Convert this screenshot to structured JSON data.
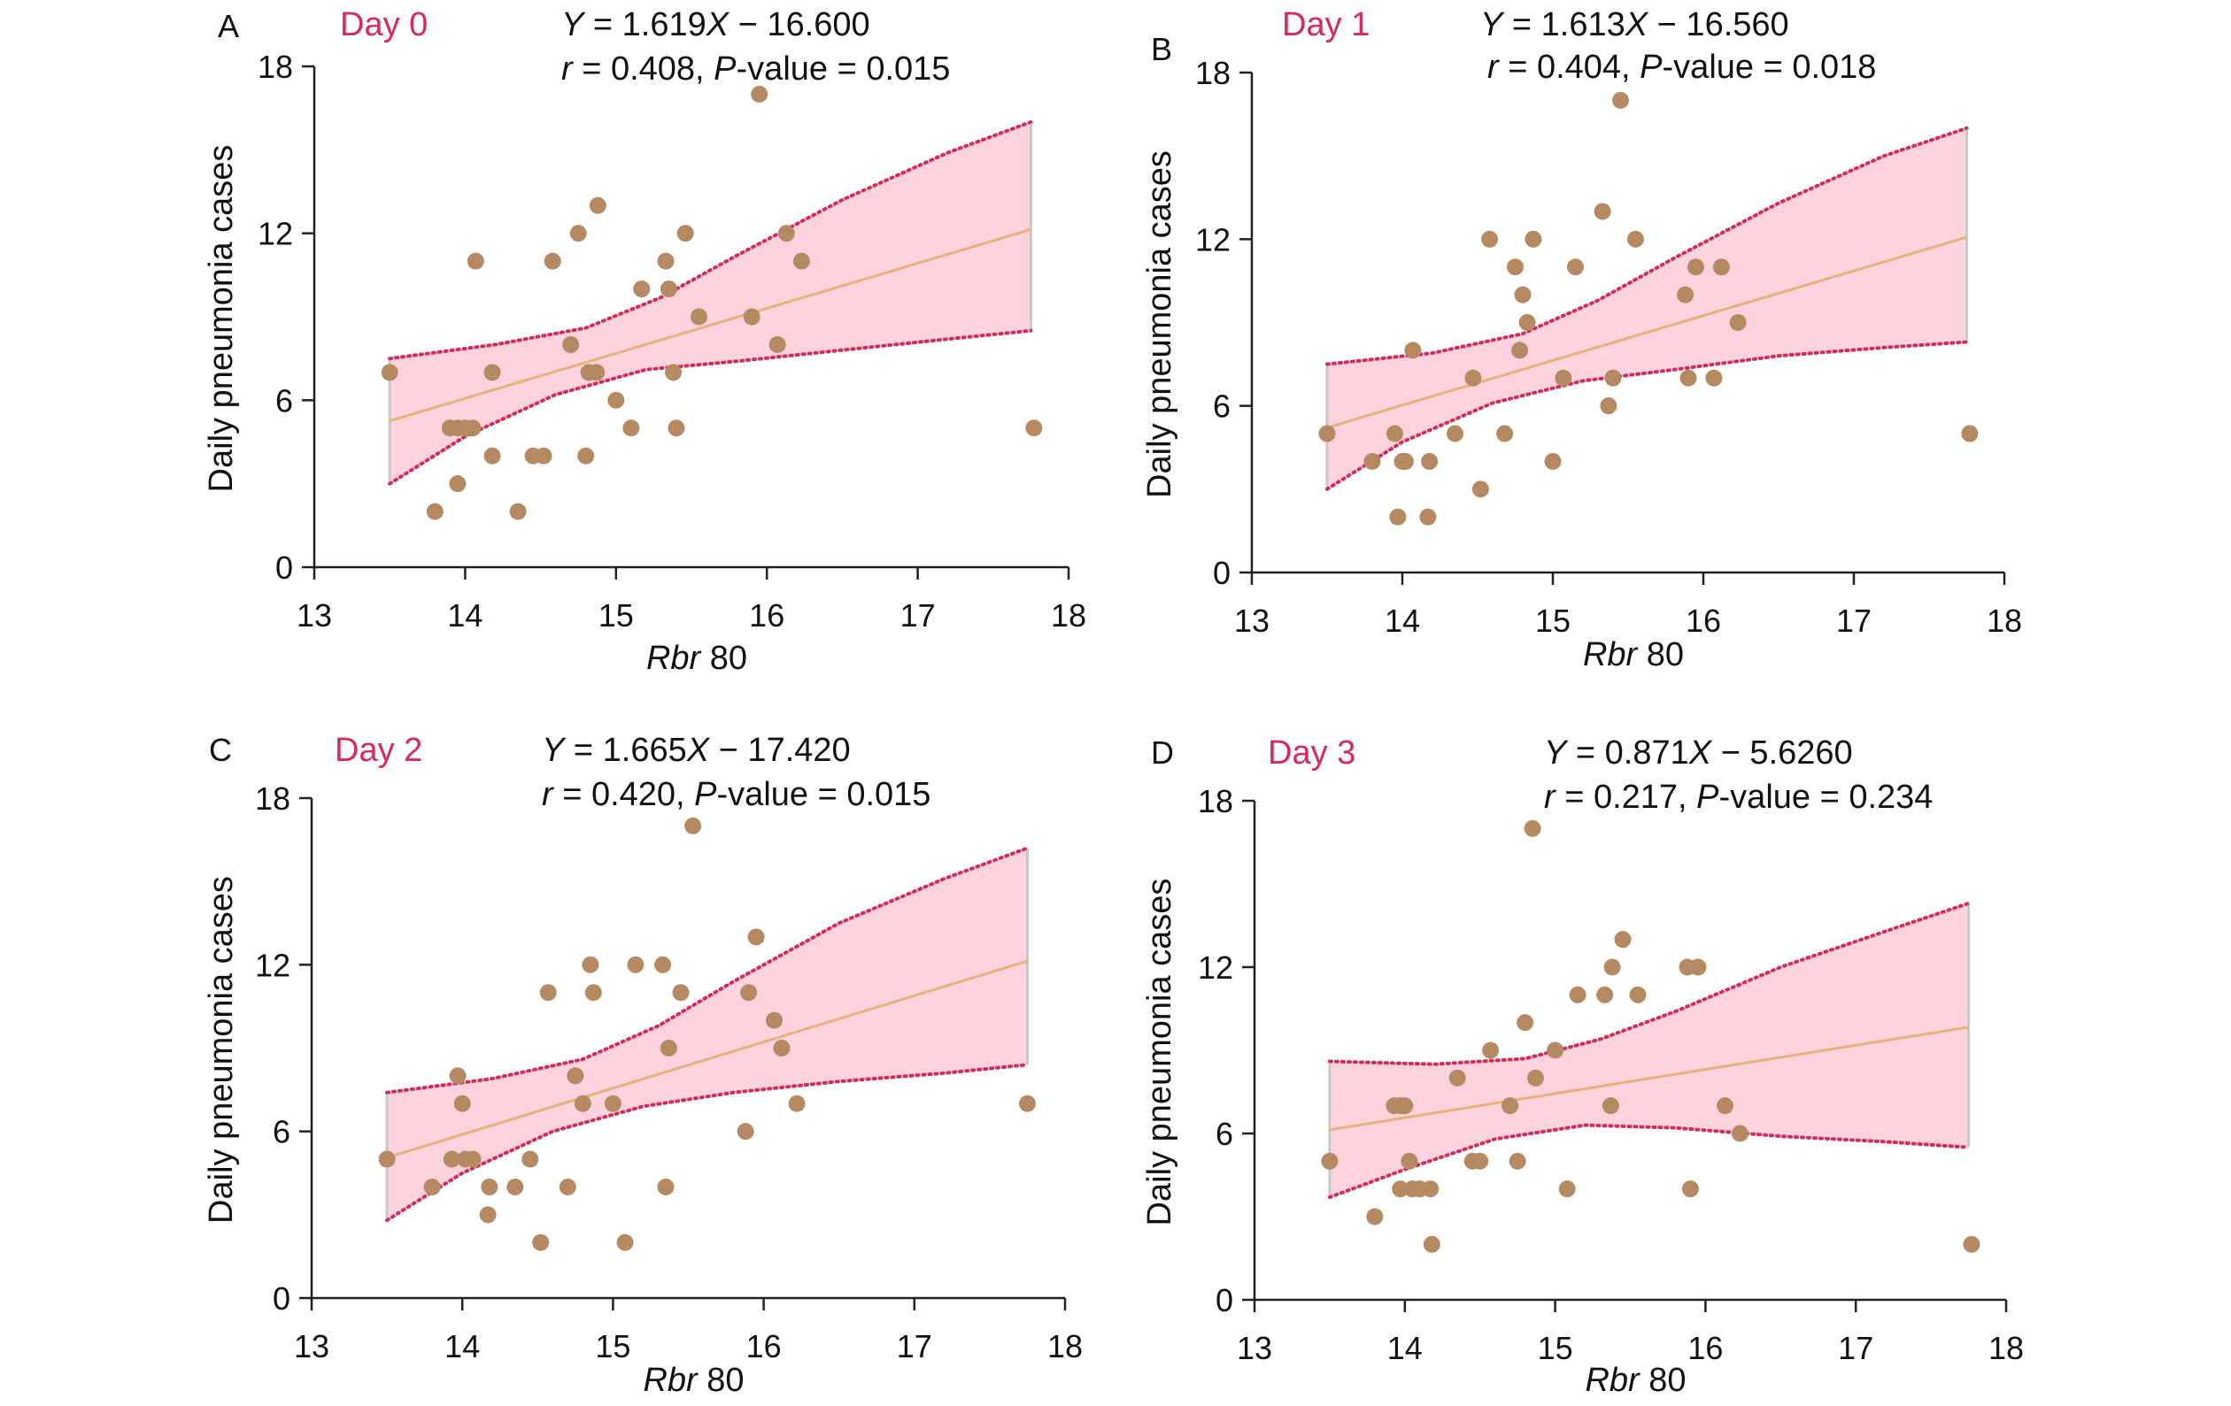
{
  "chart_data": [
    {
      "type": "scatter",
      "panel": "A",
      "day_label": "Day 0",
      "equation": {
        "y_sym": "Y",
        "eq_mid": " = 1.619",
        "x_sym": "X",
        "eq_end": " − 16.600"
      },
      "stats": {
        "r_sym": "r",
        "r_val": " = 0.408, ",
        "p_sym": "P",
        "p_val": "-value = 0.015"
      },
      "xlabel": {
        "italic": "Rbr",
        "rest": " 80"
      },
      "ylabel": "Daily pneumonia cases",
      "xlim": [
        13,
        18
      ],
      "ylim": [
        0,
        18
      ],
      "xticks": [
        13,
        14,
        15,
        16,
        17,
        18
      ],
      "yticks": [
        0,
        6,
        12,
        18
      ],
      "fit": {
        "slope": 1.619,
        "intercept": -16.6,
        "x_range": [
          13.5,
          17.75
        ]
      },
      "band": {
        "upper": [
          [
            13.5,
            7.5
          ],
          [
            14.2,
            8.0
          ],
          [
            14.8,
            8.6
          ],
          [
            15.3,
            9.7
          ],
          [
            15.8,
            11.2
          ],
          [
            16.5,
            13.2
          ],
          [
            17.2,
            14.9
          ],
          [
            17.75,
            16.0
          ]
        ],
        "lower": [
          [
            13.5,
            3.0
          ],
          [
            14.0,
            4.7
          ],
          [
            14.6,
            6.2
          ],
          [
            15.2,
            7.1
          ],
          [
            15.8,
            7.4
          ],
          [
            16.5,
            7.8
          ],
          [
            17.2,
            8.2
          ],
          [
            17.75,
            8.5
          ]
        ]
      },
      "points": [
        [
          13.5,
          7
        ],
        [
          13.8,
          2
        ],
        [
          13.9,
          5
        ],
        [
          13.95,
          5
        ],
        [
          13.95,
          3
        ],
        [
          14.0,
          5
        ],
        [
          14.05,
          5
        ],
        [
          14.07,
          11
        ],
        [
          14.18,
          4
        ],
        [
          14.18,
          7
        ],
        [
          14.35,
          2
        ],
        [
          14.45,
          4
        ],
        [
          14.52,
          4
        ],
        [
          14.58,
          11
        ],
        [
          14.7,
          8
        ],
        [
          14.75,
          12
        ],
        [
          14.8,
          4
        ],
        [
          14.82,
          7
        ],
        [
          14.87,
          7
        ],
        [
          14.88,
          13
        ],
        [
          15.0,
          6
        ],
        [
          15.1,
          5
        ],
        [
          15.17,
          10
        ],
        [
          15.33,
          11
        ],
        [
          15.35,
          10
        ],
        [
          15.38,
          7
        ],
        [
          15.4,
          5
        ],
        [
          15.46,
          12
        ],
        [
          15.55,
          9
        ],
        [
          15.9,
          9
        ],
        [
          15.95,
          17
        ],
        [
          16.07,
          8
        ],
        [
          16.13,
          12
        ],
        [
          16.23,
          11
        ],
        [
          17.77,
          5
        ]
      ],
      "colors": {
        "point": "#b58a63",
        "fit": "#e5b27a",
        "band": "#ffd3dd",
        "band_edge": "#d42a5c",
        "day_label": "#d42a5c"
      }
    },
    {
      "type": "scatter",
      "panel": "B",
      "day_label": "Day 1",
      "equation": {
        "y_sym": "Y",
        "eq_mid": " = 1.613",
        "x_sym": "X",
        "eq_end": " − 16.560"
      },
      "stats": {
        "r_sym": "r",
        "r_val": " = 0.404, ",
        "p_sym": "P",
        "p_val": "-value = 0.018"
      },
      "xlabel": {
        "italic": "Rbr",
        "rest": " 80"
      },
      "ylabel": "Daily pneumonia cases",
      "xlim": [
        13,
        18
      ],
      "ylim": [
        0,
        18
      ],
      "xticks": [
        13,
        14,
        15,
        16,
        17,
        18
      ],
      "yticks": [
        0,
        6,
        12,
        18
      ],
      "fit": {
        "slope": 1.613,
        "intercept": -16.56,
        "x_range": [
          13.5,
          17.75
        ]
      },
      "band": {
        "upper": [
          [
            13.5,
            7.5
          ],
          [
            14.2,
            7.9
          ],
          [
            14.8,
            8.6
          ],
          [
            15.3,
            9.8
          ],
          [
            15.8,
            11.3
          ],
          [
            16.5,
            13.3
          ],
          [
            17.2,
            15.0
          ],
          [
            17.75,
            16.0
          ]
        ],
        "lower": [
          [
            13.5,
            3.0
          ],
          [
            14.0,
            4.7
          ],
          [
            14.6,
            6.1
          ],
          [
            15.2,
            6.9
          ],
          [
            15.8,
            7.3
          ],
          [
            16.5,
            7.8
          ],
          [
            17.2,
            8.1
          ],
          [
            17.75,
            8.3
          ]
        ]
      },
      "points": [
        [
          13.5,
          5
        ],
        [
          13.8,
          4
        ],
        [
          13.95,
          5
        ],
        [
          13.97,
          2
        ],
        [
          14.0,
          4
        ],
        [
          14.02,
          4
        ],
        [
          14.07,
          8
        ],
        [
          14.17,
          2
        ],
        [
          14.18,
          4
        ],
        [
          14.35,
          5
        ],
        [
          14.47,
          7
        ],
        [
          14.52,
          3
        ],
        [
          14.58,
          12
        ],
        [
          14.68,
          5
        ],
        [
          14.75,
          11
        ],
        [
          14.78,
          8
        ],
        [
          14.8,
          10
        ],
        [
          14.83,
          9
        ],
        [
          14.87,
          12
        ],
        [
          15.0,
          4
        ],
        [
          15.07,
          7
        ],
        [
          15.15,
          11
        ],
        [
          15.33,
          13
        ],
        [
          15.37,
          6
        ],
        [
          15.4,
          7
        ],
        [
          15.45,
          17
        ],
        [
          15.55,
          12
        ],
        [
          15.88,
          10
        ],
        [
          15.9,
          7
        ],
        [
          15.95,
          11
        ],
        [
          16.07,
          7
        ],
        [
          16.12,
          11
        ],
        [
          16.23,
          9
        ],
        [
          17.77,
          5
        ]
      ],
      "colors": {
        "point": "#b58a63",
        "fit": "#e5b27a",
        "band": "#ffd3dd",
        "band_edge": "#d42a5c",
        "day_label": "#d42a5c"
      }
    },
    {
      "type": "scatter",
      "panel": "C",
      "day_label": "Day 2",
      "equation": {
        "y_sym": "Y",
        "eq_mid": " = 1.665",
        "x_sym": "X",
        "eq_end": " − 17.420"
      },
      "stats": {
        "r_sym": "r",
        "r_val": " = 0.420, ",
        "p_sym": "P",
        "p_val": "-value = 0.015"
      },
      "xlabel": {
        "italic": "Rbr",
        "rest": " 80"
      },
      "ylabel": "Daily pneumonia cases",
      "xlim": [
        13,
        18
      ],
      "ylim": [
        0,
        18
      ],
      "xticks": [
        13,
        14,
        15,
        16,
        17,
        18
      ],
      "yticks": [
        0,
        6,
        12,
        18
      ],
      "fit": {
        "slope": 1.665,
        "intercept": -17.42,
        "x_range": [
          13.5,
          17.75
        ]
      },
      "band": {
        "upper": [
          [
            13.5,
            7.4
          ],
          [
            14.2,
            7.9
          ],
          [
            14.8,
            8.6
          ],
          [
            15.3,
            9.8
          ],
          [
            15.8,
            11.4
          ],
          [
            16.5,
            13.5
          ],
          [
            17.2,
            15.1
          ],
          [
            17.75,
            16.2
          ]
        ],
        "lower": [
          [
            13.5,
            2.8
          ],
          [
            14.0,
            4.5
          ],
          [
            14.6,
            6.0
          ],
          [
            15.2,
            6.9
          ],
          [
            15.8,
            7.4
          ],
          [
            16.5,
            7.8
          ],
          [
            17.2,
            8.1
          ],
          [
            17.75,
            8.4
          ]
        ]
      },
      "points": [
        [
          13.5,
          5
        ],
        [
          13.8,
          4
        ],
        [
          13.93,
          5
        ],
        [
          13.97,
          8
        ],
        [
          14.0,
          7
        ],
        [
          14.02,
          5
        ],
        [
          14.07,
          5
        ],
        [
          14.17,
          3
        ],
        [
          14.18,
          4
        ],
        [
          14.35,
          4
        ],
        [
          14.45,
          5
        ],
        [
          14.52,
          2
        ],
        [
          14.57,
          11
        ],
        [
          14.7,
          4
        ],
        [
          14.75,
          8
        ],
        [
          14.8,
          7
        ],
        [
          14.85,
          12
        ],
        [
          14.87,
          11
        ],
        [
          15.0,
          7
        ],
        [
          15.08,
          2
        ],
        [
          15.15,
          12
        ],
        [
          15.33,
          12
        ],
        [
          15.35,
          4
        ],
        [
          15.37,
          9
        ],
        [
          15.45,
          11
        ],
        [
          15.53,
          17
        ],
        [
          15.88,
          6
        ],
        [
          15.9,
          11
        ],
        [
          15.95,
          13
        ],
        [
          16.07,
          10
        ],
        [
          16.12,
          9
        ],
        [
          16.22,
          7
        ],
        [
          17.75,
          7
        ]
      ],
      "colors": {
        "point": "#b58a63",
        "fit": "#e5b27a",
        "band": "#ffd3dd",
        "band_edge": "#d42a5c",
        "day_label": "#d42a5c"
      }
    },
    {
      "type": "scatter",
      "panel": "D",
      "day_label": "Day 3",
      "equation": {
        "y_sym": "Y",
        "eq_mid": " = 0.871",
        "x_sym": "X",
        "eq_end": " − 5.6260"
      },
      "stats": {
        "r_sym": "r",
        "r_val": " = 0.217, ",
        "p_sym": "P",
        "p_val": "-value = 0.234"
      },
      "xlabel": {
        "italic": "Rbr",
        "rest": " 80"
      },
      "ylabel": "Daily pneumonia cases",
      "xlim": [
        13,
        18
      ],
      "ylim": [
        0,
        18
      ],
      "xticks": [
        13,
        14,
        15,
        16,
        17,
        18
      ],
      "yticks": [
        0,
        6,
        12,
        18
      ],
      "fit": {
        "slope": 0.871,
        "intercept": -5.626,
        "x_range": [
          13.5,
          17.75
        ]
      },
      "band": {
        "upper": [
          [
            13.5,
            8.6
          ],
          [
            14.2,
            8.5
          ],
          [
            14.8,
            8.7
          ],
          [
            15.3,
            9.4
          ],
          [
            15.8,
            10.4
          ],
          [
            16.5,
            12.0
          ],
          [
            17.2,
            13.3
          ],
          [
            17.75,
            14.3
          ]
        ],
        "lower": [
          [
            13.5,
            3.7
          ],
          [
            14.0,
            4.7
          ],
          [
            14.6,
            5.8
          ],
          [
            15.2,
            6.3
          ],
          [
            15.8,
            6.2
          ],
          [
            16.5,
            5.9
          ],
          [
            17.2,
            5.7
          ],
          [
            17.75,
            5.5
          ]
        ]
      },
      "points": [
        [
          13.5,
          5
        ],
        [
          13.8,
          3
        ],
        [
          13.93,
          7
        ],
        [
          13.97,
          7
        ],
        [
          13.97,
          4
        ],
        [
          14.0,
          7
        ],
        [
          14.03,
          5
        ],
        [
          14.05,
          4
        ],
        [
          14.1,
          4
        ],
        [
          14.17,
          4
        ],
        [
          14.18,
          2
        ],
        [
          14.35,
          8
        ],
        [
          14.45,
          5
        ],
        [
          14.5,
          5
        ],
        [
          14.57,
          9
        ],
        [
          14.7,
          7
        ],
        [
          14.75,
          5
        ],
        [
          14.8,
          10
        ],
        [
          14.85,
          17
        ],
        [
          14.87,
          8
        ],
        [
          15.0,
          9
        ],
        [
          15.08,
          4
        ],
        [
          15.15,
          11
        ],
        [
          15.33,
          11
        ],
        [
          15.37,
          7
        ],
        [
          15.38,
          12
        ],
        [
          15.45,
          13
        ],
        [
          15.55,
          11
        ],
        [
          15.88,
          12
        ],
        [
          15.9,
          4
        ],
        [
          15.95,
          12
        ],
        [
          16.13,
          7
        ],
        [
          16.23,
          6
        ],
        [
          17.77,
          2
        ]
      ],
      "colors": {
        "point": "#b58a63",
        "fit": "#e5b27a",
        "band": "#ffd3dd",
        "band_edge": "#d42a5c",
        "day_label": "#d42a5c"
      }
    }
  ]
}
